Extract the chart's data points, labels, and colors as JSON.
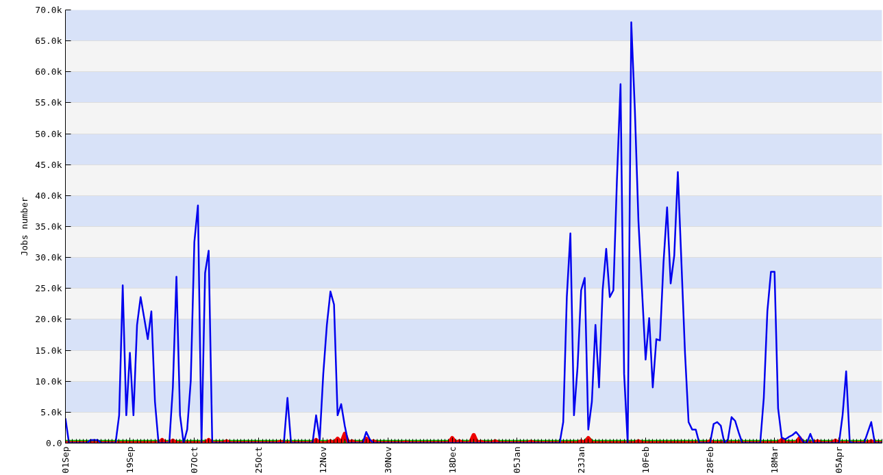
{
  "chart_data": {
    "type": "line",
    "ylabel": "Jobs number",
    "ylim": [
      0,
      70000
    ],
    "categories": [
      "01Sep",
      null,
      null,
      null,
      null,
      null,
      null,
      null,
      null,
      null,
      null,
      null,
      null,
      null,
      null,
      null,
      null,
      null,
      "19Sep",
      null,
      null,
      null,
      null,
      null,
      null,
      null,
      null,
      null,
      null,
      null,
      null,
      null,
      null,
      null,
      null,
      null,
      "07Oct",
      null,
      null,
      null,
      null,
      null,
      null,
      null,
      null,
      null,
      null,
      null,
      null,
      null,
      null,
      null,
      null,
      null,
      "25Oct",
      null,
      null,
      null,
      null,
      null,
      null,
      null,
      null,
      null,
      null,
      null,
      null,
      null,
      null,
      null,
      null,
      null,
      "12Nov",
      null,
      null,
      null,
      null,
      null,
      null,
      null,
      null,
      null,
      null,
      null,
      null,
      null,
      null,
      null,
      null,
      null,
      "30Nov",
      null,
      null,
      null,
      null,
      null,
      null,
      null,
      null,
      null,
      null,
      null,
      null,
      null,
      null,
      null,
      null,
      null,
      "18Dec",
      null,
      null,
      null,
      null,
      null,
      null,
      null,
      null,
      null,
      null,
      null,
      null,
      null,
      null,
      null,
      null,
      null,
      "05Jan",
      null,
      null,
      null,
      null,
      null,
      null,
      null,
      null,
      null,
      null,
      null,
      null,
      null,
      null,
      null,
      null,
      null,
      "23Jan",
      null,
      null,
      null,
      null,
      null,
      null,
      null,
      null,
      null,
      null,
      null,
      null,
      null,
      null,
      null,
      null,
      null,
      "10Feb",
      null,
      null,
      null,
      null,
      null,
      null,
      null,
      null,
      null,
      null,
      null,
      null,
      null,
      null,
      null,
      null,
      null,
      "28Feb",
      null,
      null,
      null,
      null,
      null,
      null,
      null,
      null,
      null,
      null,
      null,
      null,
      null,
      null,
      null,
      null,
      null,
      "18Mar",
      null,
      null,
      null,
      null,
      null,
      null,
      null,
      null,
      null,
      null,
      null,
      null,
      null,
      null,
      null,
      null,
      null,
      "05Apr",
      null,
      null,
      null,
      null,
      null,
      null,
      null,
      null,
      null,
      null,
      null,
      null
    ],
    "yticks": [
      {
        "value": 0,
        "label": "0.0"
      },
      {
        "value": 5000,
        "label": "5.0k"
      },
      {
        "value": 10000,
        "label": "10.0k"
      },
      {
        "value": 15000,
        "label": "15.0k"
      },
      {
        "value": 20000,
        "label": "20.0k"
      },
      {
        "value": 25000,
        "label": "25.0k"
      },
      {
        "value": 30000,
        "label": "30.0k"
      },
      {
        "value": 35000,
        "label": "35.0k"
      },
      {
        "value": 40000,
        "label": "40.0k"
      },
      {
        "value": 45000,
        "label": "45.0k"
      },
      {
        "value": 50000,
        "label": "50.0k"
      },
      {
        "value": 55000,
        "label": "55.0k"
      },
      {
        "value": 60000,
        "label": "60.0k"
      },
      {
        "value": 65000,
        "label": "65.0k"
      },
      {
        "value": 70000,
        "label": "70.0k"
      }
    ],
    "grid": "y",
    "marker": "none",
    "line_style": "solid",
    "series": [
      {
        "color": "#0000ee",
        "values": [
          4000,
          0,
          0,
          0,
          0,
          0,
          0,
          500,
          500,
          500,
          0,
          0,
          0,
          0,
          0,
          4500,
          25500,
          4500,
          14600,
          4500,
          19100,
          23600,
          20200,
          16800,
          21300,
          6700,
          0,
          0,
          0,
          0,
          9000,
          26900,
          4500,
          0,
          2200,
          10100,
          32500,
          38400,
          0,
          27500,
          31100,
          0,
          0,
          0,
          0,
          0,
          0,
          0,
          0,
          0,
          0,
          0,
          0,
          0,
          0,
          0,
          0,
          0,
          0,
          0,
          0,
          0,
          7300,
          0,
          0,
          0,
          0,
          0,
          0,
          0,
          4500,
          600,
          11200,
          19100,
          24500,
          22400,
          4500,
          6300,
          2800,
          0,
          0,
          0,
          0,
          0,
          1800,
          600,
          0,
          0,
          0,
          0,
          0,
          0,
          0,
          0,
          0,
          0,
          0,
          0,
          0,
          0,
          0,
          0,
          0,
          0,
          0,
          0,
          0,
          0,
          0,
          0,
          0,
          0,
          0,
          0,
          0,
          0,
          0,
          0,
          0,
          0,
          0,
          0,
          0,
          0,
          0,
          0,
          0,
          0,
          0,
          0,
          0,
          0,
          0,
          0,
          0,
          0,
          0,
          0,
          0,
          3400,
          23600,
          33900,
          4500,
          12300,
          24700,
          26700,
          2200,
          6700,
          19100,
          9000,
          24700,
          31400,
          23600,
          24700,
          42600,
          58000,
          11200,
          0,
          68000,
          53900,
          35900,
          24700,
          13500,
          20200,
          9000,
          16800,
          16600,
          29200,
          38100,
          25800,
          30300,
          43800,
          29200,
          14600,
          3400,
          2200,
          2200,
          0,
          0,
          0,
          0,
          3100,
          3400,
          2800,
          0,
          600,
          4200,
          3600,
          1700,
          0,
          0,
          0,
          0,
          0,
          0,
          7300,
          21300,
          27700,
          27700,
          5600,
          900,
          600,
          1000,
          1300,
          1800,
          1100,
          200,
          0,
          1500,
          0,
          0,
          0,
          0,
          0,
          0,
          0,
          0,
          4500,
          11600,
          200,
          0,
          0,
          0,
          0,
          1700,
          3400,
          0,
          0,
          0
        ]
      },
      {
        "color": "#ee0000",
        "values": [
          0,
          0,
          0,
          0,
          0,
          0,
          0,
          0,
          0,
          0,
          0,
          0,
          0,
          0,
          0,
          0,
          0,
          0,
          0,
          0,
          0,
          0,
          0,
          0,
          0,
          0,
          0,
          500,
          0,
          0,
          400,
          0,
          0,
          0,
          0,
          0,
          0,
          0,
          0,
          0,
          500,
          0,
          0,
          0,
          0,
          300,
          0,
          0,
          0,
          0,
          0,
          0,
          0,
          0,
          0,
          0,
          0,
          0,
          0,
          0,
          200,
          0,
          0,
          0,
          0,
          0,
          0,
          0,
          0,
          0,
          500,
          0,
          0,
          0,
          300,
          0,
          700,
          0,
          1500,
          0,
          300,
          0,
          0,
          0,
          700,
          0,
          300,
          0,
          0,
          0,
          0,
          0,
          0,
          0,
          0,
          100,
          0,
          0,
          0,
          0,
          0,
          0,
          0,
          0,
          0,
          0,
          0,
          0,
          800,
          0,
          300,
          0,
          0,
          0,
          1300,
          0,
          200,
          0,
          0,
          0,
          300,
          0,
          0,
          0,
          0,
          0,
          0,
          0,
          0,
          0,
          200,
          0,
          0,
          0,
          0,
          0,
          0,
          0,
          0,
          0,
          0,
          0,
          0,
          0,
          300,
          0,
          800,
          0,
          0,
          0,
          0,
          0,
          0,
          0,
          0,
          0,
          0,
          0,
          0,
          0,
          300,
          0,
          0,
          0,
          0,
          0,
          0,
          0,
          0,
          0,
          0,
          0,
          0,
          0,
          0,
          0,
          0,
          0,
          0,
          0,
          300,
          0,
          0,
          0,
          0,
          0,
          0,
          0,
          0,
          0,
          0,
          0,
          0,
          0,
          0,
          0,
          0,
          0,
          0,
          0,
          500,
          0,
          0,
          0,
          0,
          800,
          0,
          0,
          0,
          0,
          300,
          0,
          0,
          0,
          0,
          400,
          0,
          0,
          0,
          0,
          0,
          0,
          0,
          0,
          0,
          300,
          0,
          0,
          0
        ]
      },
      {
        "color": "#00cc00",
        "values": [
          0,
          0,
          0,
          0,
          0,
          0,
          0,
          0,
          0,
          0,
          0,
          0,
          0,
          0,
          0,
          0,
          0,
          0,
          0,
          0,
          0,
          0,
          0,
          0,
          0,
          0,
          0,
          0,
          0,
          0,
          0,
          0,
          0,
          0,
          0,
          0,
          0,
          0,
          0,
          0,
          0,
          0,
          0,
          0,
          0,
          0,
          0,
          0,
          0,
          0,
          0,
          0,
          0,
          0,
          0,
          0,
          0,
          0,
          0,
          0,
          0,
          0,
          0,
          0,
          0,
          0,
          0,
          0,
          0,
          0,
          0,
          0,
          0,
          0,
          0,
          0,
          0,
          0,
          0,
          0,
          0,
          0,
          0,
          0,
          0,
          0,
          0,
          0,
          0,
          0,
          0,
          0,
          0,
          0,
          0,
          0,
          0,
          0,
          0,
          0,
          0,
          0,
          0,
          0,
          0,
          0,
          0,
          0,
          0,
          0,
          0,
          0,
          0,
          0,
          0,
          0,
          0,
          0,
          0,
          0,
          0,
          0,
          0,
          0,
          0,
          0,
          0,
          0,
          0,
          0,
          0,
          0,
          0,
          0,
          0,
          0,
          0,
          0,
          0,
          0,
          0,
          0,
          0,
          0,
          0,
          0,
          500,
          0,
          0,
          0,
          0,
          0,
          0,
          0,
          0,
          0,
          0,
          0,
          0,
          0,
          0,
          0,
          0,
          0,
          0,
          0,
          0,
          0,
          0,
          0,
          0,
          0,
          0,
          0,
          0,
          0,
          0,
          0,
          0,
          0,
          0,
          0,
          0,
          0,
          0,
          0,
          0,
          0,
          0,
          0,
          0,
          0,
          0,
          0,
          0,
          0,
          0,
          0,
          0,
          0,
          0,
          0,
          0,
          0,
          0,
          0,
          0,
          0,
          0,
          0,
          0,
          0,
          0,
          0,
          0,
          0,
          0,
          0,
          0,
          0,
          0,
          0,
          0,
          0,
          0,
          0,
          0,
          0,
          0
        ]
      }
    ]
  }
}
